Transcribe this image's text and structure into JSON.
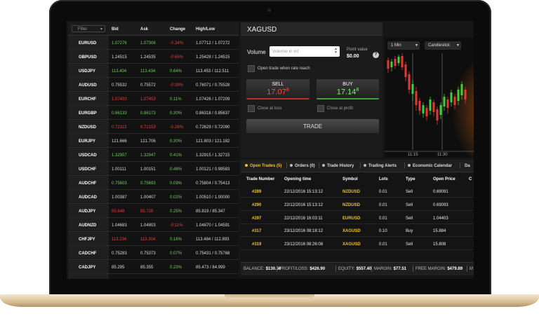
{
  "watchlist": {
    "filter": "Filter",
    "columns": [
      "Bid",
      "Ask",
      "Change",
      "High/Low"
    ],
    "rows": [
      {
        "symbol": "EURUSD",
        "bid": "1.07276",
        "ask": "1.07306",
        "change": "-0.34%",
        "high_low": "1.07712 / 1.07272",
        "colors": [
          "#6ccf5a",
          "#6ccf5a",
          "#e2403a"
        ]
      },
      {
        "symbol": "GBPUSD",
        "bid": "1.24515",
        "ask": "1.24535",
        "change": "-0.65%",
        "high_low": "1.25428 / 1.24515",
        "colors": [
          "#dddddd",
          "#dddddd",
          "#e2403a"
        ]
      },
      {
        "symbol": "USDJPY",
        "bid": "113.404",
        "ask": "113.434",
        "change": "0.64%",
        "high_low": "113.453 / 112.511",
        "colors": [
          "#6ccf5a",
          "#6ccf5a",
          "#6ccf5a"
        ]
      },
      {
        "symbol": "AUDUSD",
        "bid": "0.75532",
        "ask": "0.75572",
        "change": "-0.39%",
        "high_low": "0.76071 / 0.75528",
        "colors": [
          "#dddddd",
          "#dddddd",
          "#e2403a"
        ]
      },
      {
        "symbol": "EURCHF",
        "bid": "1.07403",
        "ask": "1.07453",
        "change": "0.11%",
        "high_low": "1.07426 / 1.07209",
        "colors": [
          "#e2403a",
          "#e2403a",
          "#6ccf5a"
        ]
      },
      {
        "symbol": "EURGBP",
        "bid": "0.86133",
        "ask": "0.86173",
        "change": "0.30%",
        "high_low": "0.86318 / 0.85637",
        "colors": [
          "#6ccf5a",
          "#6ccf5a",
          "#6ccf5a"
        ]
      },
      {
        "symbol": "NZDUSD",
        "bid": "0.72113",
        "ask": "0.72153",
        "change": "-0.26%",
        "high_low": "0.72629 / 0.72090",
        "colors": [
          "#e2403a",
          "#e2403a",
          "#e2403a"
        ]
      },
      {
        "symbol": "EURJPY",
        "bid": "121.666",
        "ask": "121.706",
        "change": "0.30%",
        "high_low": "121.803 / 121.182",
        "colors": [
          "#dddddd",
          "#dddddd",
          "#6ccf5a"
        ]
      },
      {
        "symbol": "USDCAD",
        "bid": "1.32907",
        "ask": "1.32947",
        "change": "0.41%",
        "high_low": "1.32915 / 1.32715",
        "colors": [
          "#6ccf5a",
          "#6ccf5a",
          "#6ccf5a"
        ]
      },
      {
        "symbol": "USDCHF",
        "bid": "1.00111",
        "ask": "1.00151",
        "change": "0.48%",
        "high_low": "1.00121 / 0.99583",
        "colors": [
          "#dddddd",
          "#dddddd",
          "#6ccf5a"
        ]
      },
      {
        "symbol": "AUDCHF",
        "bid": "0.75603",
        "ask": "0.75693",
        "change": "0.09%",
        "high_low": "0.75804 / 0.75413",
        "colors": [
          "#6ccf5a",
          "#6ccf5a",
          "#6ccf5a"
        ]
      },
      {
        "symbol": "AUDCAD",
        "bid": "1.00387",
        "ask": "1.00407",
        "change": "0.02%",
        "high_low": "1.00510 / 1.00000",
        "colors": [
          "#dddddd",
          "#dddddd",
          "#6ccf5a"
        ]
      },
      {
        "symbol": "AUDJPY",
        "bid": "85.648",
        "ask": "85.728",
        "change": "0.25%",
        "high_low": "85.819 / 85.347",
        "colors": [
          "#e2403a",
          "#e2403a",
          "#6ccf5a"
        ]
      },
      {
        "symbol": "AUDNZD",
        "bid": "1.04683",
        "ask": "1.04803",
        "change": "-0.11%",
        "high_low": "1.04870 / 1.04591",
        "colors": [
          "#dddddd",
          "#dddddd",
          "#e2403a"
        ]
      },
      {
        "symbol": "CHFJPY",
        "bid": "113.234",
        "ask": "113.304",
        "change": "0.16%",
        "high_low": "113.484 / 112.893",
        "colors": [
          "#e2403a",
          "#e2403a",
          "#6ccf5a"
        ]
      },
      {
        "symbol": "CADCHF",
        "bid": "0.75283",
        "ask": "0.75373",
        "change": "0.07%",
        "high_low": "0.75431 / 0.75768",
        "colors": [
          "#dddddd",
          "#dddddd",
          "#6ccf5a"
        ]
      },
      {
        "symbol": "CADJPY",
        "bid": "85.295",
        "ask": "85.355",
        "change": "0.23%",
        "high_low": "85.473 / 84.999",
        "colors": [
          "#dddddd",
          "#dddddd",
          "#6ccf5a"
        ]
      }
    ]
  },
  "trade_panel": {
    "symbol": "XAGUSD",
    "volume_label": "Volume",
    "volume_placeholder": "Volume in lot",
    "point_value_label": "Point value",
    "point_value": "$0.00",
    "help": "?",
    "open_when_rate": "Open trade when rate reach",
    "sell": {
      "label": "SELL",
      "price": "17.07",
      "pip": "8"
    },
    "buy": {
      "label": "BUY",
      "price": "17.14",
      "pip": "8"
    },
    "close_at_loss": "Close at loss",
    "close_at_profit": "Close at profit",
    "trade": "TRADE"
  },
  "chart": {
    "timeframe": "1 Min",
    "chart_type": "Candlestick",
    "x_labels": [
      "11:15",
      "11:30"
    ]
  },
  "tabs": [
    "Open Trades (5)",
    "Orders (0)",
    "Trade History",
    "Trading Alerts",
    "Economic Calendar",
    "Da"
  ],
  "trades": {
    "columns": [
      "Trade Number",
      "Opening time",
      "Symbol",
      "Lots",
      "Type",
      "Open Price",
      "C"
    ],
    "rows": [
      [
        "#289",
        "22/12/2016 15:13:12",
        "NZDUSD",
        "0.01",
        "Sell",
        "0.69091"
      ],
      [
        "#290",
        "22/12/2016 15:13:12",
        "NZDUSD",
        "0.01",
        "Sell",
        "0.69093"
      ],
      [
        "#297",
        "22/12/2016 16:03:11",
        "EURUSD",
        "0.01",
        "Sell",
        "1.04403"
      ],
      [
        "#317",
        "23/12/2016 08:18:12",
        "XAGUSD",
        "0.10",
        "Buy",
        "15.884"
      ],
      [
        "#319",
        "23/12/2016 08:26:08",
        "XAGUSD",
        "0.01",
        "Sell",
        "15.808"
      ]
    ]
  },
  "account": [
    {
      "label": "BALANCE:",
      "value": "$130.50"
    },
    {
      "label": "PROFIT/LOSS:",
      "value": "$426.90"
    },
    {
      "label": "EQUITY:",
      "value": "$557.40"
    },
    {
      "label": "MARGIN:",
      "value": "$77.51"
    },
    {
      "label": "FREE MARGIN:",
      "value": "$479.89"
    },
    {
      "label": "M"
    }
  ]
}
